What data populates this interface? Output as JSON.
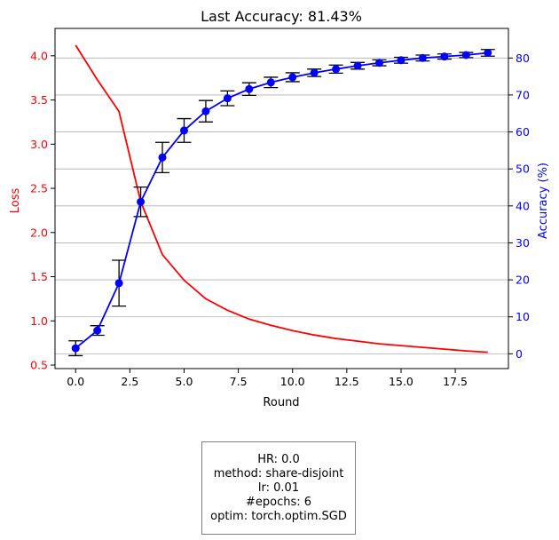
{
  "chart_data": {
    "type": "line",
    "title": "Last Accuracy: 81.43%",
    "xlabel": "Round",
    "y_left_label": "Loss",
    "y_right_label": "Accuracy (%)",
    "x_ticks": [
      "0.0",
      "2.5",
      "5.0",
      "7.5",
      "10.0",
      "12.5",
      "15.0",
      "17.5"
    ],
    "y_left_ticks": [
      "0.5",
      "1.0",
      "1.5",
      "2.0",
      "2.5",
      "3.0",
      "3.5",
      "4.0"
    ],
    "y_right_ticks": [
      "0",
      "10",
      "20",
      "30",
      "40",
      "50",
      "60",
      "70",
      "80"
    ],
    "xlim": [
      -0.95,
      19.95
    ],
    "y_left_lim": [
      0.46,
      4.31
    ],
    "y_right_lim": [
      -4,
      88
    ],
    "grid": true,
    "colors": {
      "loss": "#ff0000",
      "accuracy": "#0000ff",
      "errorbar": "#000000"
    },
    "series": [
      {
        "name": "Loss",
        "axis": "left",
        "x": [
          0,
          1,
          2,
          3,
          4,
          5,
          6,
          7,
          8,
          9,
          10,
          11,
          12,
          13,
          14,
          15,
          16,
          17,
          18,
          19
        ],
        "values": [
          4.12,
          3.73,
          3.37,
          2.35,
          1.75,
          1.46,
          1.25,
          1.12,
          1.02,
          0.95,
          0.89,
          0.84,
          0.8,
          0.77,
          0.74,
          0.72,
          0.7,
          0.68,
          0.66,
          0.645
        ]
      },
      {
        "name": "Accuracy",
        "axis": "right",
        "x": [
          0,
          1,
          2,
          3,
          4,
          5,
          6,
          7,
          8,
          9,
          10,
          11,
          12,
          13,
          14,
          15,
          16,
          17,
          18,
          19
        ],
        "values": [
          1.5,
          6.3,
          19.1,
          41.1,
          53.1,
          60.4,
          65.6,
          69.1,
          71.6,
          73.4,
          74.8,
          76.0,
          77.0,
          77.9,
          78.7,
          79.4,
          80.0,
          80.4,
          80.8,
          81.4
        ],
        "error": [
          2.0,
          1.3,
          6.2,
          4.0,
          4.1,
          3.2,
          2.9,
          2.0,
          1.7,
          1.4,
          1.2,
          1.0,
          1.1,
          0.9,
          0.8,
          0.8,
          0.8,
          0.7,
          0.7,
          0.9
        ]
      }
    ]
  },
  "info_box": {
    "lines": [
      "HR: 0.0",
      "method: share-disjoint",
      "lr: 0.01",
      "#epochs: 6",
      "optim: torch.optim.SGD"
    ]
  }
}
